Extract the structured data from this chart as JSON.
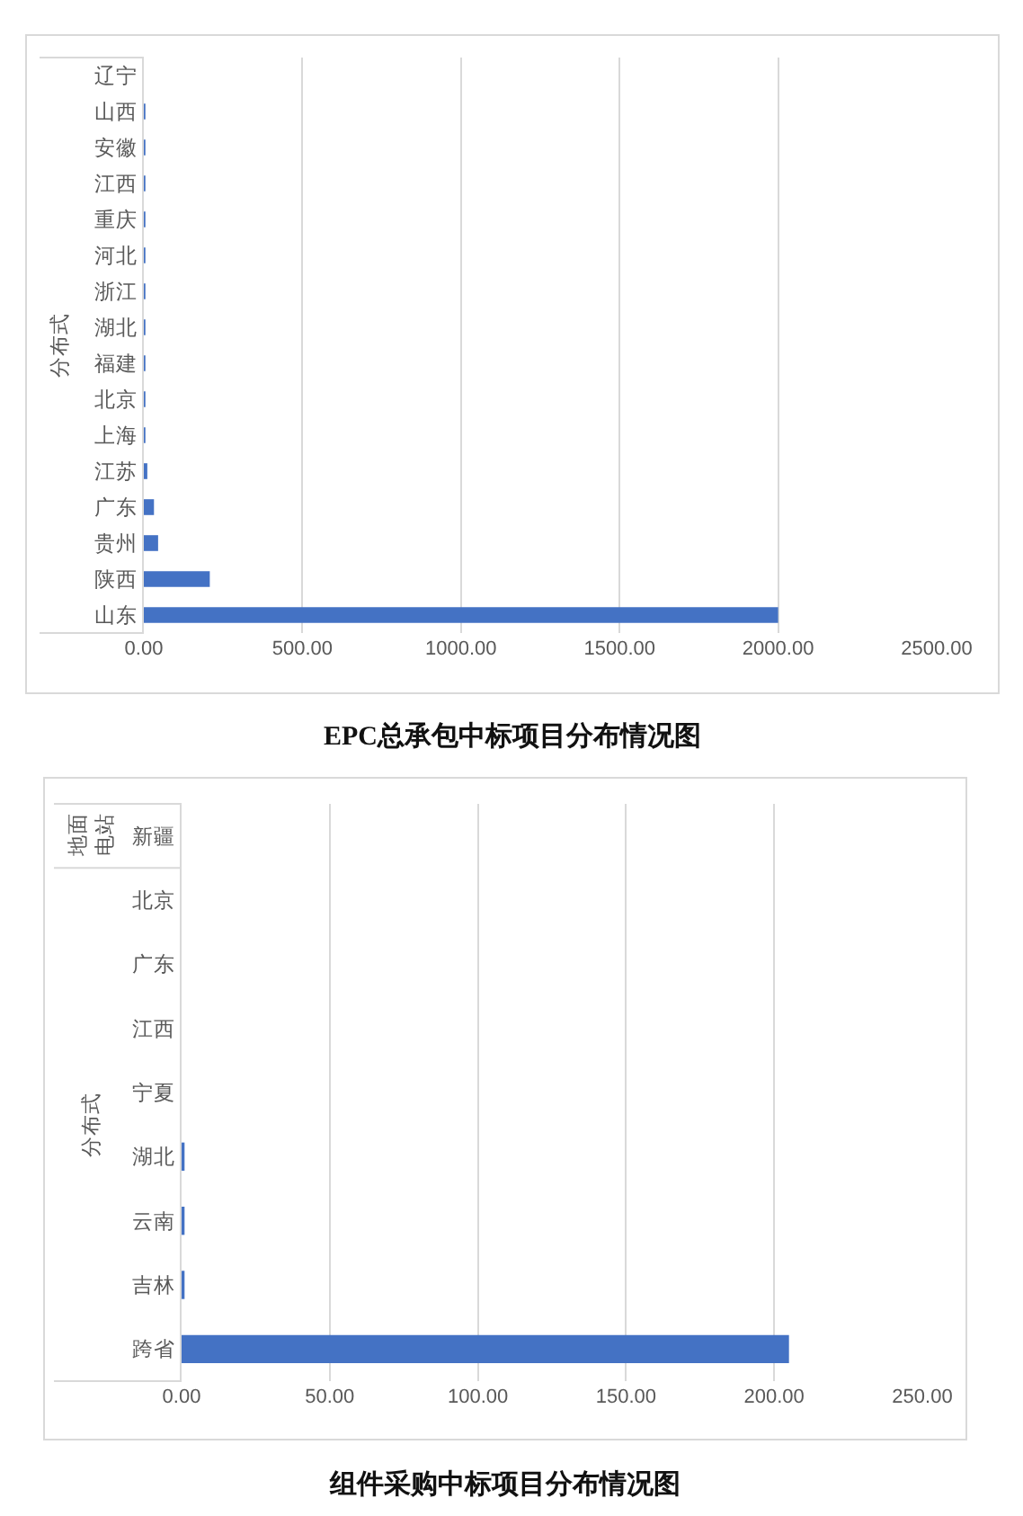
{
  "chart_data": [
    {
      "type": "bar",
      "orientation": "horizontal",
      "title": "EPC总承包中标项目分布情况图",
      "categories": [
        "辽宁",
        "山西",
        "安徽",
        "江西",
        "重庆",
        "河北",
        "浙江",
        "湖北",
        "福建",
        "北京",
        "上海",
        "江苏",
        "广东",
        "贵州",
        "陕西",
        "山东"
      ],
      "values": [
        0,
        5,
        5,
        5,
        5,
        5,
        5,
        5,
        5,
        5,
        5,
        11,
        32,
        45,
        208,
        2000
      ],
      "color": "#4472c4",
      "xlim": [
        0,
        2500
      ],
      "xticks": [
        {
          "value": 0,
          "label": "0.00"
        },
        {
          "value": 500,
          "label": "500.00"
        },
        {
          "value": 1000,
          "label": "1000.00"
        },
        {
          "value": 1500,
          "label": "1500.00"
        },
        {
          "value": 2000,
          "label": "2000.00"
        },
        {
          "value": 2500,
          "label": "2500.00"
        }
      ],
      "grid": "x",
      "annotations": [
        "分布式"
      ]
    },
    {
      "type": "bar",
      "orientation": "horizontal",
      "title": "组件采购中标项目分布情况图",
      "categories": [
        "新疆",
        "北京",
        "广东",
        "江西",
        "宁夏",
        "湖北",
        "云南",
        "吉林",
        "跨省"
      ],
      "values": [
        0,
        0,
        0,
        0,
        0,
        1,
        1,
        1,
        205
      ],
      "color": "#4472c4",
      "xlim": [
        0,
        250
      ],
      "xticks": [
        {
          "value": 0,
          "label": "0.00"
        },
        {
          "value": 50,
          "label": "50.00"
        },
        {
          "value": 100,
          "label": "100.00"
        },
        {
          "value": 150,
          "label": "150.00"
        },
        {
          "value": 200,
          "label": "200.00"
        },
        {
          "value": 250,
          "label": "250.00"
        }
      ],
      "grid": "x",
      "annotations": [
        "地面电站",
        "分布式"
      ]
    }
  ]
}
